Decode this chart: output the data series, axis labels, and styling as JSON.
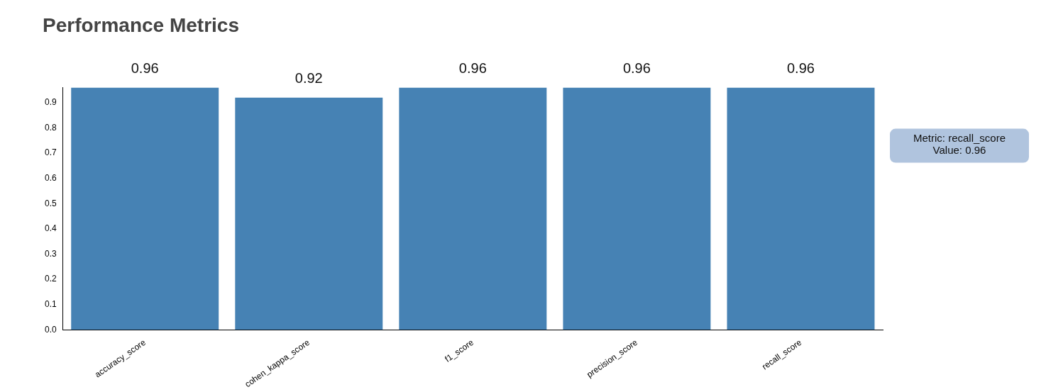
{
  "chart_data": {
    "type": "bar",
    "title": "Performance Metrics",
    "categories": [
      "accuracy_score",
      "cohen_kappa_score",
      "f1_score",
      "precision_score",
      "recall_score"
    ],
    "values": [
      0.96,
      0.92,
      0.96,
      0.96,
      0.96
    ],
    "color": "#4682b4",
    "ylim": [
      0,
      0.96
    ],
    "yticks": [
      {
        "value": 0,
        "label": "0.0"
      },
      0.1,
      0.2,
      0.3,
      0.4,
      0.5,
      0.6,
      0.7,
      0.8,
      0.9
    ],
    "grid": false,
    "data_labels": true,
    "annotations": [
      "Metric: recall_score\nValue: 0.96"
    ]
  }
}
